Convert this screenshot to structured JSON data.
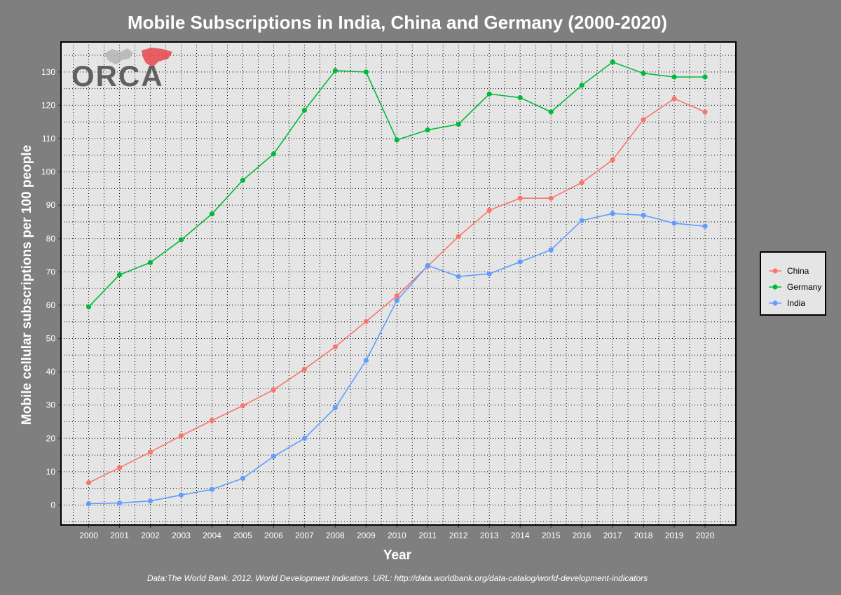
{
  "logo": {
    "text": "ORCA"
  },
  "caption": "Data:The World Bank. 2012. World Development Indicators. URL: http://data.worldbank.org/data-catalog/world-development-indicators",
  "chart_data": {
    "type": "line",
    "title": "Mobile Subscriptions in India, China and Germany (2000-2020)",
    "xlabel": "Year",
    "ylabel": "Mobile cellular subscriptions per 100 people",
    "x": [
      2000,
      2001,
      2002,
      2003,
      2004,
      2005,
      2006,
      2007,
      2008,
      2009,
      2010,
      2011,
      2012,
      2013,
      2014,
      2015,
      2016,
      2017,
      2018,
      2019,
      2020
    ],
    "xticks": [
      "2000",
      "2001",
      "2002",
      "2003",
      "2004",
      "2005",
      "2006",
      "2007",
      "2008",
      "2009",
      "2010",
      "2011",
      "2012",
      "2013",
      "2014",
      "2015",
      "2016",
      "2017",
      "2018",
      "2019",
      "2020"
    ],
    "yticks": [
      0,
      10,
      20,
      30,
      40,
      50,
      60,
      70,
      80,
      90,
      100,
      110,
      120,
      130
    ],
    "ylim": [
      -6,
      139
    ],
    "grid": true,
    "legend_position": "right",
    "series": [
      {
        "name": "China",
        "color": "#f8766d",
        "values": [
          6.7,
          11.2,
          15.9,
          20.8,
          25.4,
          29.8,
          34.6,
          40.8,
          47.5,
          55.1,
          62.8,
          71.7,
          80.6,
          88.5,
          92.1,
          92.1,
          96.8,
          103.6,
          115.7,
          122.0,
          118.0
        ]
      },
      {
        "name": "Germany",
        "color": "#00ba38",
        "values": [
          59.5,
          69.1,
          72.8,
          79.6,
          87.4,
          97.5,
          105.4,
          118.5,
          130.4,
          130.0,
          109.6,
          112.6,
          114.3,
          123.4,
          122.3,
          118.0,
          126.0,
          133.0,
          129.6,
          128.5,
          128.5
        ]
      },
      {
        "name": "India",
        "color": "#619cff",
        "values": [
          0.4,
          0.6,
          1.2,
          3.0,
          4.7,
          8.0,
          14.6,
          20.0,
          29.2,
          43.4,
          61.4,
          71.9,
          68.6,
          69.4,
          73.0,
          76.6,
          85.4,
          87.5,
          87.0,
          84.6,
          83.7
        ]
      }
    ]
  }
}
